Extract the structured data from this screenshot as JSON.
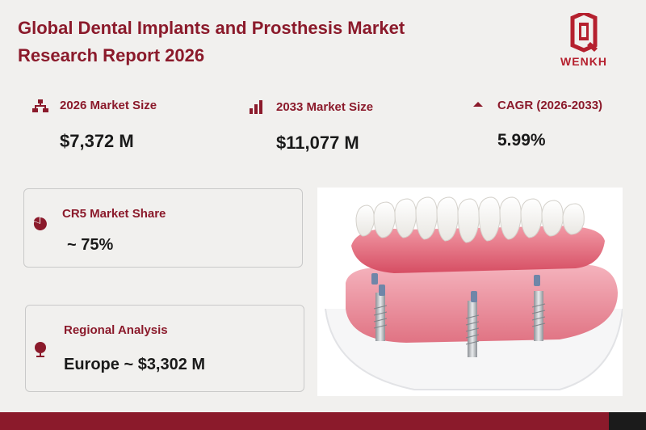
{
  "report": {
    "title_line1": "Global Dental Implants and Prosthesis Market",
    "title_line2": "Research Report 2026"
  },
  "brand": {
    "name": "WENKH",
    "color": "#b5202e"
  },
  "stats": [
    {
      "label": "2026 Market Size",
      "value": "$7,372 M",
      "icon": "hierarchy-icon"
    },
    {
      "label": "2033 Market Size",
      "value": "$11,077 M",
      "icon": "bar-chart-icon"
    },
    {
      "label": "CAGR (2026-2033)",
      "value": "5.99%",
      "icon": "triangle-up-icon"
    }
  ],
  "cards": [
    {
      "label": "CR5 Market Share",
      "value": "~ 75%",
      "icon": "pie-chart-icon"
    },
    {
      "label": "Regional Analysis",
      "value": "Europe ~ $3,302 M",
      "icon": "globe-icon"
    }
  ],
  "colors": {
    "accent": "#8b1a2b",
    "background": "#f1f0ee",
    "text": "#1a1a1a"
  }
}
